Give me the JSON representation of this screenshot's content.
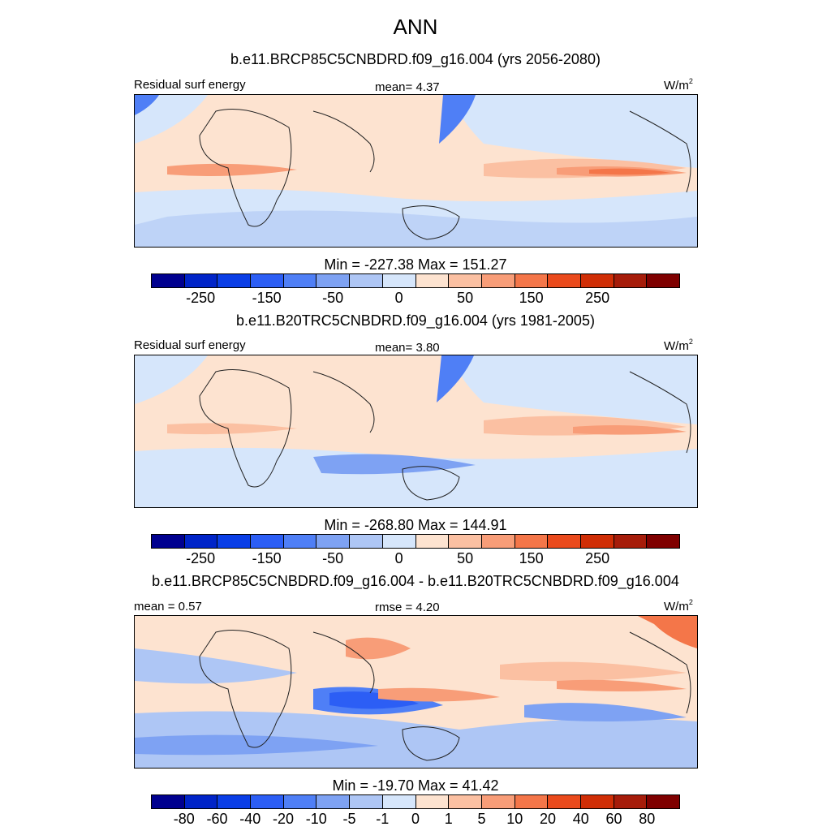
{
  "title": "ANN",
  "panels": [
    {
      "case_title": "b.e11.BRCP85C5CNBDRD.f09_g16.004 (yrs 2056-2080)",
      "left_label": "Residual surf energy",
      "center_label": "mean=   4.37",
      "unit_base": "W/m",
      "unit_exp": "2",
      "minmax": "Min = -227.38 Max = 151.27",
      "ticks": [
        "-250",
        "-150",
        "-50",
        "0",
        "50",
        "150",
        "250"
      ],
      "mean": 4.37,
      "min": -227.38,
      "max": 151.27
    },
    {
      "case_title": "b.e11.B20TRC5CNBDRD.f09_g16.004 (yrs 1981-2005)",
      "left_label": "Residual surf energy",
      "center_label": "mean=   3.80",
      "unit_base": "W/m",
      "unit_exp": "2",
      "minmax": "Min = -268.80 Max = 144.91",
      "ticks": [
        "-250",
        "-150",
        "-50",
        "0",
        "50",
        "150",
        "250"
      ],
      "mean": 3.8,
      "min": -268.8,
      "max": 144.91
    },
    {
      "case_title": "b.e11.BRCP85C5CNBDRD.f09_g16.004 - b.e11.B20TRC5CNBDRD.f09_g16.004",
      "left_label": "mean =   0.57",
      "center_label": "rmse =   4.20",
      "unit_base": "W/m",
      "unit_exp": "2",
      "minmax": "Min = -19.70 Max =  41.42",
      "ticks": [
        "-80",
        "-60",
        "-40",
        "-20",
        "-10",
        "-5",
        "-1",
        "0",
        "1",
        "5",
        "10",
        "20",
        "40",
        "60",
        "80"
      ],
      "mean": 0.57,
      "rmse": 4.2,
      "min": -19.7,
      "max": 41.42
    }
  ],
  "colors": [
    "#00008f",
    "#0024c8",
    "#0a3ee6",
    "#2c5ef5",
    "#4f7ff6",
    "#7ea2f3",
    "#aec6f5",
    "#d6e6fb",
    "#fde3d0",
    "#fbc0a2",
    "#f89d78",
    "#f47649",
    "#ea4a1c",
    "#d02e06",
    "#a61c0a",
    "#7f0000"
  ],
  "ocean_colors": {
    "neutral_pos": "#fde3d0",
    "neutral_neg": "#d6e6fb"
  }
}
